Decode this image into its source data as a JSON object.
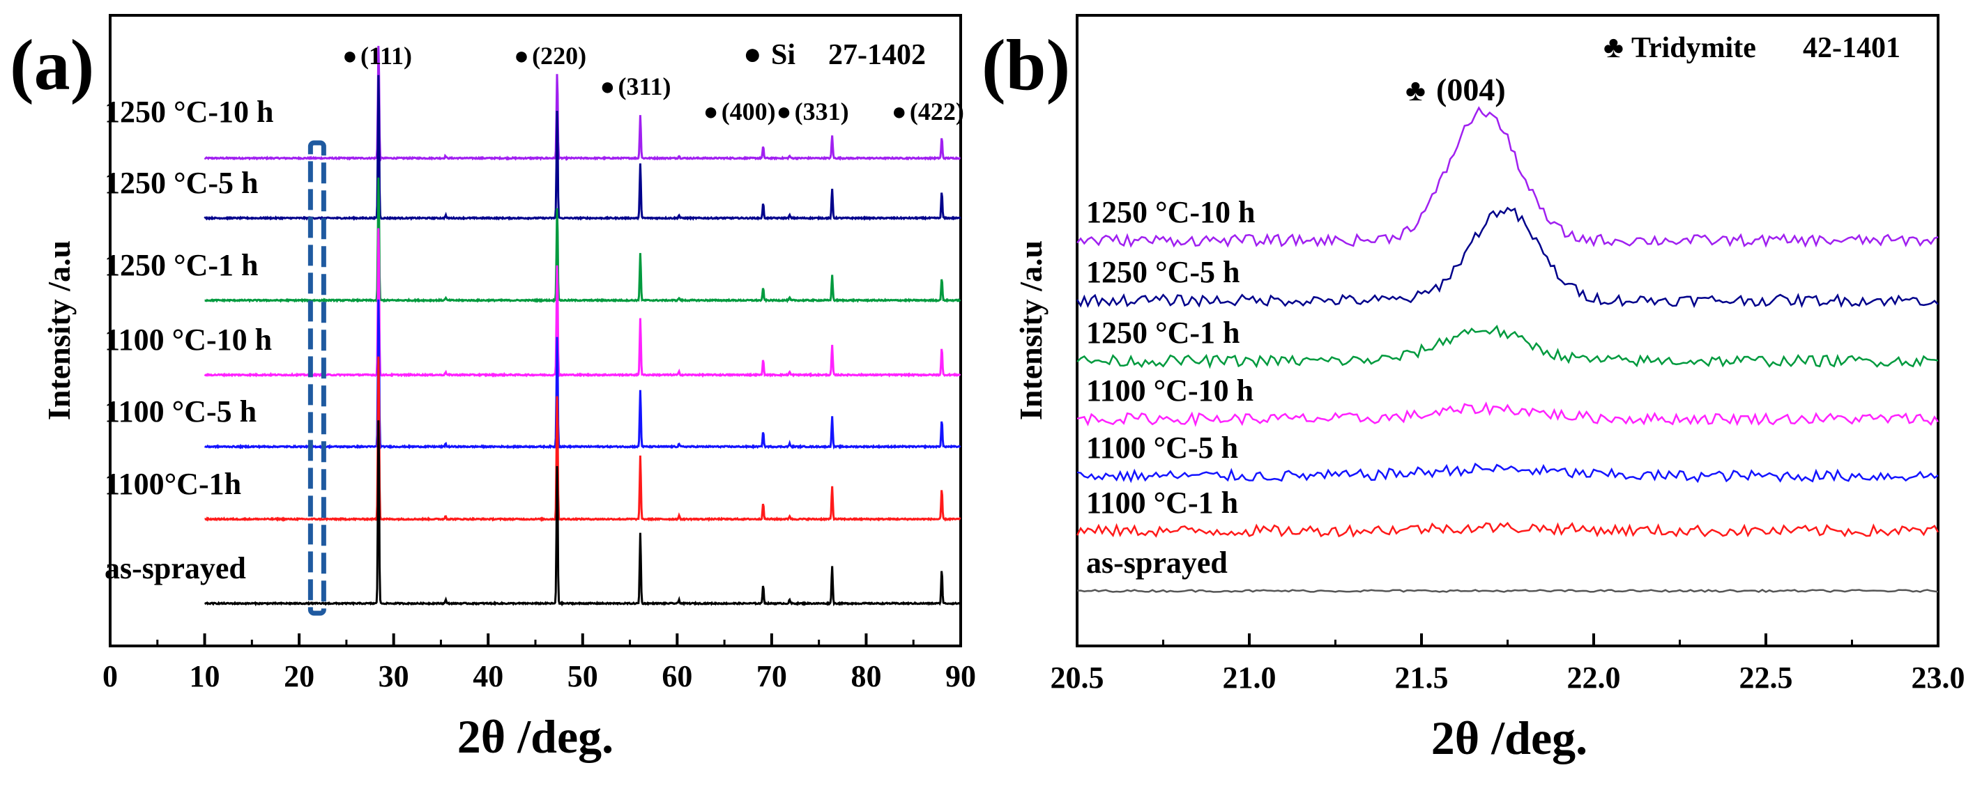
{
  "chart_data": [
    {
      "type": "line",
      "panel_label": "(a)",
      "xlabel": "2θ /deg.",
      "ylabel": "Intensity /a.u",
      "xlim": [
        0,
        90
      ],
      "xticks": [
        "0",
        "10",
        "20",
        "30",
        "40",
        "50",
        "60",
        "70",
        "80",
        "90"
      ],
      "stack_offsets": [
        0,
        1,
        2,
        3,
        4,
        5,
        6
      ],
      "reference": {
        "marker": "●",
        "phase": "Si",
        "card": "27-1402"
      },
      "peaks": [
        {
          "label": "(111)",
          "x": 28.4
        },
        {
          "label": "(220)",
          "x": 47.3
        },
        {
          "label": "(311)",
          "x": 56.1
        },
        {
          "label": "(400)",
          "x": 69.1
        },
        {
          "label": "(331)",
          "x": 76.4
        },
        {
          "label": "(422)",
          "x": 88.0
        }
      ],
      "peak_heights": [
        1.0,
        0.75,
        0.38,
        0.1,
        0.2,
        0.18
      ],
      "minor_peaks": [
        {
          "x": 35.5,
          "h": 0.02
        },
        {
          "x": 60.2,
          "h": 0.02
        },
        {
          "x": 71.9,
          "h": 0.02
        }
      ],
      "highlight_region": [
        21.2,
        22.6
      ],
      "series": [
        {
          "name": "1250 °C-10 h",
          "color": "#a020f0",
          "scale": 0.55
        },
        {
          "name": "1250 °C-5 h",
          "color": "#00008b",
          "scale": 0.7
        },
        {
          "name": "1250 °C-1 h",
          "color": "#009a3e",
          "scale": 0.6
        },
        {
          "name": "1100 °C-10 h",
          "color": "#ff22ff",
          "scale": 0.72
        },
        {
          "name": "1100 °C-5 h",
          "color": "#1414ff",
          "scale": 0.72
        },
        {
          "name": "1100°C-1h",
          "color": "#ff1a1a",
          "scale": 0.8
        },
        {
          "name": "as-sprayed",
          "color": "#000000",
          "scale": 0.9
        }
      ]
    },
    {
      "type": "line",
      "panel_label": "(b)",
      "xlabel": "2θ  /deg.",
      "ylabel": "Intensity /a.u",
      "xlim": [
        20.5,
        23.0
      ],
      "xticks": [
        "20.5",
        "21.0",
        "21.5",
        "22.0",
        "22.5",
        "23.0"
      ],
      "stack_offsets": [
        0,
        1,
        2,
        3,
        4,
        5,
        6
      ],
      "reference": {
        "marker": "♣",
        "phase": "Tridymite",
        "card": "42-1401"
      },
      "peak": {
        "label": "(004)",
        "x": 21.65
      },
      "series": [
        {
          "name": "1250 °C-10 h",
          "color": "#a020f0",
          "peak_center": 21.68,
          "peak_width": 0.14,
          "peak_height": 1.85
        },
        {
          "name": "1250 °C-5 h",
          "color": "#00008b",
          "peak_center": 21.74,
          "peak_width": 0.14,
          "peak_height": 1.3
        },
        {
          "name": "1250 °C-1 h",
          "color": "#009a3e",
          "peak_center": 21.68,
          "peak_width": 0.17,
          "peak_height": 0.45
        },
        {
          "name": "1100 °C-10 h",
          "color": "#ff22ff",
          "peak_center": 21.7,
          "peak_width": 0.2,
          "peak_height": 0.15
        },
        {
          "name": "1100 °C-5 h",
          "color": "#1414ff",
          "peak_center": 21.7,
          "peak_width": 0.25,
          "peak_height": 0.1
        },
        {
          "name": "1100 °C-1 h",
          "color": "#ff1a1a",
          "peak_center": 21.7,
          "peak_width": 0.3,
          "peak_height": 0.05
        },
        {
          "name": "as-sprayed",
          "color": "#555555",
          "peak_center": 21.7,
          "peak_width": 0.3,
          "peak_height": 0.0
        }
      ]
    }
  ]
}
